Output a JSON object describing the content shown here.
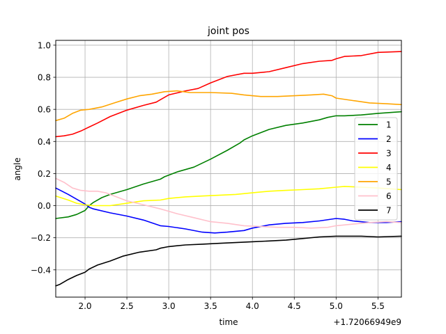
{
  "chart_data": {
    "type": "line",
    "title": "joint pos",
    "xlabel": "time",
    "ylabel": "angle",
    "x_offset_label": "+1.72066949e9",
    "xlim": [
      1.65,
      5.78
    ],
    "ylim": [
      -0.57,
      1.03
    ],
    "xticks": [
      2.0,
      2.5,
      3.0,
      3.5,
      4.0,
      4.5,
      5.0,
      5.5
    ],
    "xtick_labels": [
      "2.0",
      "2.5",
      "3.0",
      "3.5",
      "4.0",
      "4.5",
      "5.0",
      "5.5"
    ],
    "yticks": [
      -0.4,
      -0.2,
      0.0,
      0.2,
      0.4,
      0.6,
      0.8,
      1.0
    ],
    "ytick_labels": [
      "−0.4",
      "−0.2",
      "0.0",
      "0.2",
      "0.4",
      "0.6",
      "0.8",
      "1.0"
    ],
    "grid": true,
    "legend_position": "center-right",
    "series": [
      {
        "name": "1",
        "color": "#008000",
        "x": [
          1.65,
          1.8,
          1.9,
          2.0,
          2.05,
          2.1,
          2.2,
          2.3,
          2.5,
          2.7,
          2.9,
          2.95,
          3.1,
          3.3,
          3.5,
          3.7,
          3.85,
          3.9,
          4.0,
          4.2,
          4.4,
          4.6,
          4.8,
          4.9,
          5.0,
          5.1,
          5.3,
          5.5,
          5.78
        ],
        "y": [
          -0.08,
          -0.07,
          -0.055,
          -0.03,
          0.0,
          0.02,
          0.05,
          0.07,
          0.1,
          0.135,
          0.165,
          0.18,
          0.21,
          0.24,
          0.29,
          0.345,
          0.39,
          0.41,
          0.435,
          0.475,
          0.5,
          0.515,
          0.535,
          0.55,
          0.56,
          0.56,
          0.565,
          0.575,
          0.585
        ]
      },
      {
        "name": "2",
        "color": "#0000ff",
        "x": [
          1.65,
          1.8,
          1.9,
          2.0,
          2.05,
          2.1,
          2.3,
          2.5,
          2.7,
          2.9,
          3.0,
          3.2,
          3.4,
          3.55,
          3.7,
          3.9,
          4.0,
          4.2,
          4.4,
          4.6,
          4.8,
          5.0,
          5.1,
          5.2,
          5.4,
          5.6,
          5.78
        ],
        "y": [
          0.11,
          0.07,
          0.04,
          0.01,
          -0.01,
          -0.02,
          -0.045,
          -0.065,
          -0.09,
          -0.125,
          -0.13,
          -0.145,
          -0.165,
          -0.17,
          -0.165,
          -0.155,
          -0.14,
          -0.12,
          -0.11,
          -0.105,
          -0.095,
          -0.08,
          -0.085,
          -0.095,
          -0.105,
          -0.105,
          -0.1
        ]
      },
      {
        "name": "3",
        "color": "#ff0000",
        "x": [
          1.65,
          1.75,
          1.85,
          1.95,
          2.05,
          2.15,
          2.3,
          2.5,
          2.7,
          2.85,
          2.9,
          3.0,
          3.2,
          3.35,
          3.5,
          3.7,
          3.9,
          4.0,
          4.2,
          4.4,
          4.6,
          4.8,
          4.95,
          5.0,
          5.1,
          5.3,
          5.5,
          5.78
        ],
        "y": [
          0.43,
          0.435,
          0.445,
          0.465,
          0.49,
          0.515,
          0.555,
          0.595,
          0.625,
          0.645,
          0.66,
          0.69,
          0.715,
          0.73,
          0.765,
          0.805,
          0.825,
          0.825,
          0.835,
          0.86,
          0.885,
          0.9,
          0.905,
          0.915,
          0.93,
          0.935,
          0.955,
          0.96
        ]
      },
      {
        "name": "4",
        "color": "#ffff00",
        "x": [
          1.65,
          1.8,
          1.9,
          2.0,
          2.1,
          2.3,
          2.5,
          2.7,
          2.9,
          3.0,
          3.2,
          3.4,
          3.6,
          3.8,
          4.0,
          4.2,
          4.4,
          4.6,
          4.8,
          5.0,
          5.1,
          5.3,
          5.5,
          5.78
        ],
        "y": [
          0.06,
          0.035,
          0.015,
          0.005,
          0.0,
          0.0,
          0.015,
          0.03,
          0.035,
          0.045,
          0.055,
          0.06,
          0.065,
          0.07,
          0.08,
          0.09,
          0.095,
          0.1,
          0.105,
          0.115,
          0.12,
          0.115,
          0.11,
          0.1
        ]
      },
      {
        "name": "5",
        "color": "#ffa500",
        "x": [
          1.65,
          1.75,
          1.85,
          1.95,
          2.05,
          2.2,
          2.35,
          2.5,
          2.65,
          2.8,
          2.95,
          3.1,
          3.25,
          3.5,
          3.75,
          3.9,
          4.1,
          4.3,
          4.5,
          4.7,
          4.85,
          4.95,
          5.0,
          5.2,
          5.4,
          5.6,
          5.78
        ],
        "y": [
          0.53,
          0.545,
          0.575,
          0.595,
          0.6,
          0.615,
          0.64,
          0.665,
          0.685,
          0.695,
          0.71,
          0.715,
          0.705,
          0.705,
          0.7,
          0.69,
          0.68,
          0.68,
          0.685,
          0.69,
          0.695,
          0.685,
          0.67,
          0.655,
          0.64,
          0.635,
          0.63
        ]
      },
      {
        "name": "6",
        "color": "#ffc0cb",
        "x": [
          1.65,
          1.75,
          1.85,
          1.95,
          2.05,
          2.15,
          2.25,
          2.35,
          2.5,
          2.7,
          2.9,
          3.0,
          3.1,
          3.3,
          3.5,
          3.7,
          3.9,
          4.1,
          4.3,
          4.5,
          4.7,
          4.9,
          5.0,
          5.2,
          5.4,
          5.6,
          5.78
        ],
        "y": [
          0.17,
          0.145,
          0.11,
          0.095,
          0.09,
          0.09,
          0.08,
          0.06,
          0.03,
          0.005,
          -0.02,
          -0.035,
          -0.05,
          -0.075,
          -0.1,
          -0.11,
          -0.125,
          -0.13,
          -0.135,
          -0.135,
          -0.14,
          -0.135,
          -0.125,
          -0.115,
          -0.105,
          -0.1,
          -0.105
        ]
      },
      {
        "name": "7",
        "color": "#000000",
        "x": [
          1.65,
          1.7,
          1.8,
          1.9,
          2.0,
          2.05,
          2.15,
          2.3,
          2.45,
          2.65,
          2.85,
          2.9,
          3.0,
          3.2,
          3.4,
          3.6,
          3.8,
          4.0,
          4.2,
          4.4,
          4.6,
          4.8,
          5.0,
          5.1,
          5.3,
          5.5,
          5.78
        ],
        "y": [
          -0.5,
          -0.49,
          -0.46,
          -0.435,
          -0.415,
          -0.395,
          -0.37,
          -0.345,
          -0.315,
          -0.29,
          -0.275,
          -0.265,
          -0.255,
          -0.245,
          -0.24,
          -0.235,
          -0.23,
          -0.225,
          -0.22,
          -0.215,
          -0.205,
          -0.195,
          -0.19,
          -0.19,
          -0.19,
          -0.195,
          -0.19
        ]
      }
    ]
  }
}
